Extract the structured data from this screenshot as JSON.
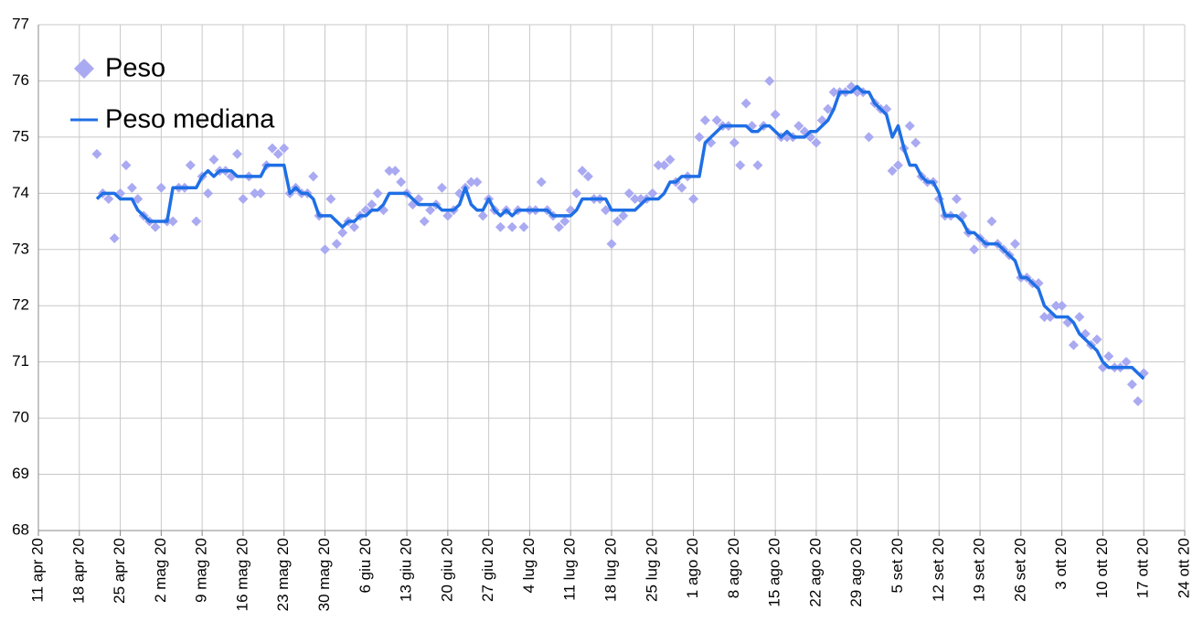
{
  "chart_data": {
    "type": "combo",
    "legend": "top-left",
    "grid": true,
    "x": [
      "2020-04-21",
      "2020-04-22",
      "2020-04-23",
      "2020-04-24",
      "2020-04-25",
      "2020-04-26",
      "2020-04-27",
      "2020-04-28",
      "2020-04-29",
      "2020-04-30",
      "2020-05-01",
      "2020-05-02",
      "2020-05-03",
      "2020-05-04",
      "2020-05-05",
      "2020-05-06",
      "2020-05-07",
      "2020-05-08",
      "2020-05-09",
      "2020-05-10",
      "2020-05-11",
      "2020-05-12",
      "2020-05-13",
      "2020-05-14",
      "2020-05-15",
      "2020-05-16",
      "2020-05-17",
      "2020-05-18",
      "2020-05-19",
      "2020-05-20",
      "2020-05-21",
      "2020-05-22",
      "2020-05-23",
      "2020-05-24",
      "2020-05-25",
      "2020-05-26",
      "2020-05-27",
      "2020-05-28",
      "2020-05-29",
      "2020-05-30",
      "2020-05-31",
      "2020-06-01",
      "2020-06-02",
      "2020-06-03",
      "2020-06-04",
      "2020-06-05",
      "2020-06-06",
      "2020-06-07",
      "2020-06-08",
      "2020-06-09",
      "2020-06-10",
      "2020-06-11",
      "2020-06-12",
      "2020-06-13",
      "2020-06-14",
      "2020-06-15",
      "2020-06-16",
      "2020-06-17",
      "2020-06-18",
      "2020-06-19",
      "2020-06-20",
      "2020-06-21",
      "2020-06-22",
      "2020-06-23",
      "2020-06-24",
      "2020-06-25",
      "2020-06-26",
      "2020-06-27",
      "2020-06-28",
      "2020-06-29",
      "2020-06-30",
      "2020-07-01",
      "2020-07-02",
      "2020-07-03",
      "2020-07-04",
      "2020-07-05",
      "2020-07-06",
      "2020-07-07",
      "2020-07-08",
      "2020-07-09",
      "2020-07-10",
      "2020-07-11",
      "2020-07-12",
      "2020-07-13",
      "2020-07-14",
      "2020-07-15",
      "2020-07-16",
      "2020-07-17",
      "2020-07-18",
      "2020-07-19",
      "2020-07-20",
      "2020-07-21",
      "2020-07-22",
      "2020-07-23",
      "2020-07-24",
      "2020-07-25",
      "2020-07-26",
      "2020-07-27",
      "2020-07-28",
      "2020-07-29",
      "2020-07-30",
      "2020-07-31",
      "2020-08-01",
      "2020-08-02",
      "2020-08-03",
      "2020-08-04",
      "2020-08-05",
      "2020-08-06",
      "2020-08-07",
      "2020-08-08",
      "2020-08-09",
      "2020-08-10",
      "2020-08-11",
      "2020-08-12",
      "2020-08-13",
      "2020-08-14",
      "2020-08-15",
      "2020-08-16",
      "2020-08-17",
      "2020-08-18",
      "2020-08-19",
      "2020-08-20",
      "2020-08-21",
      "2020-08-22",
      "2020-08-23",
      "2020-08-24",
      "2020-08-25",
      "2020-08-26",
      "2020-08-27",
      "2020-08-28",
      "2020-08-29",
      "2020-08-30",
      "2020-08-31",
      "2020-09-01",
      "2020-09-02",
      "2020-09-03",
      "2020-09-04",
      "2020-09-05",
      "2020-09-06",
      "2020-09-07",
      "2020-09-08",
      "2020-09-09",
      "2020-09-10",
      "2020-09-11",
      "2020-09-12",
      "2020-09-13",
      "2020-09-14",
      "2020-09-15",
      "2020-09-16",
      "2020-09-17",
      "2020-09-18",
      "2020-09-19",
      "2020-09-20",
      "2020-09-21",
      "2020-09-22",
      "2020-09-23",
      "2020-09-24",
      "2020-09-25",
      "2020-09-26",
      "2020-09-27",
      "2020-09-28",
      "2020-09-29",
      "2020-09-30",
      "2020-10-01",
      "2020-10-02",
      "2020-10-03",
      "2020-10-04",
      "2020-10-05",
      "2020-10-06",
      "2020-10-07",
      "2020-10-08",
      "2020-10-09",
      "2020-10-10",
      "2020-10-11",
      "2020-10-12",
      "2020-10-13",
      "2020-10-14",
      "2020-10-15",
      "2020-10-16",
      "2020-10-17"
    ],
    "series": [
      {
        "name": "Peso",
        "type": "scatter",
        "color": "#aaaaf2",
        "values": [
          74.7,
          74.0,
          73.9,
          73.2,
          74.0,
          74.5,
          74.1,
          73.9,
          73.6,
          73.5,
          73.4,
          74.1,
          73.5,
          73.5,
          74.1,
          74.1,
          74.5,
          73.5,
          74.3,
          74.0,
          74.6,
          74.4,
          74.4,
          74.3,
          74.7,
          73.9,
          74.3,
          74.0,
          74.0,
          74.5,
          74.8,
          74.7,
          74.8,
          74.0,
          74.1,
          74.0,
          74.0,
          74.3,
          73.6,
          73.0,
          73.9,
          73.1,
          73.3,
          73.5,
          73.4,
          73.6,
          73.7,
          73.8,
          74.0,
          73.7,
          74.4,
          74.4,
          74.2,
          74.0,
          73.8,
          73.9,
          73.5,
          73.7,
          73.8,
          74.1,
          73.6,
          73.7,
          74.0,
          74.1,
          74.2,
          74.2,
          73.6,
          73.9,
          73.7,
          73.4,
          73.7,
          73.4,
          73.7,
          73.4,
          73.7,
          73.7,
          74.2,
          73.7,
          73.6,
          73.4,
          73.5,
          73.7,
          74.0,
          74.4,
          74.3,
          73.9,
          73.9,
          73.7,
          73.1,
          73.5,
          73.6,
          74.0,
          73.9,
          73.9,
          73.9,
          74.0,
          74.5,
          74.5,
          74.6,
          74.2,
          74.1,
          74.3,
          73.9,
          75.0,
          75.3,
          74.9,
          75.3,
          75.2,
          75.2,
          74.9,
          74.5,
          75.6,
          75.2,
          74.5,
          75.2,
          76.0,
          75.4,
          75.0,
          75.0,
          75.0,
          75.2,
          75.1,
          75.0,
          74.9,
          75.3,
          75.5,
          75.8,
          75.8,
          75.8,
          75.9,
          75.8,
          75.8,
          75.0,
          75.6,
          75.5,
          75.5,
          74.4,
          74.5,
          74.8,
          75.2,
          74.9,
          74.3,
          74.2,
          74.2,
          73.9,
          73.6,
          73.6,
          73.9,
          73.6,
          73.3,
          73.0,
          73.2,
          73.1,
          73.5,
          73.1,
          73.0,
          72.9,
          73.1,
          72.5,
          72.5,
          72.4,
          72.4,
          71.8,
          71.8,
          72.0,
          72.0,
          71.7,
          71.3,
          71.8,
          71.5,
          71.3,
          71.4,
          70.9,
          71.1,
          70.9,
          70.9,
          71.0,
          70.6,
          70.3,
          70.8
        ]
      },
      {
        "name": "Peso mediana",
        "type": "line",
        "color": "#1f6fe5",
        "values": [
          73.9,
          74.0,
          74.0,
          74.0,
          73.9,
          73.9,
          73.9,
          73.7,
          73.6,
          73.5,
          73.5,
          73.5,
          73.5,
          74.1,
          74.1,
          74.1,
          74.1,
          74.1,
          74.3,
          74.4,
          74.3,
          74.4,
          74.4,
          74.4,
          74.3,
          74.3,
          74.3,
          74.3,
          74.3,
          74.5,
          74.5,
          74.5,
          74.5,
          74.0,
          74.1,
          74.0,
          74.0,
          73.9,
          73.6,
          73.6,
          73.6,
          73.5,
          73.4,
          73.5,
          73.5,
          73.6,
          73.6,
          73.7,
          73.7,
          73.8,
          74.0,
          74.0,
          74.0,
          74.0,
          73.9,
          73.8,
          73.8,
          73.8,
          73.8,
          73.7,
          73.7,
          73.7,
          73.8,
          74.1,
          73.8,
          73.7,
          73.7,
          73.9,
          73.7,
          73.6,
          73.7,
          73.6,
          73.7,
          73.7,
          73.7,
          73.7,
          73.7,
          73.7,
          73.6,
          73.6,
          73.6,
          73.6,
          73.7,
          73.9,
          73.9,
          73.9,
          73.9,
          73.9,
          73.7,
          73.7,
          73.7,
          73.7,
          73.7,
          73.8,
          73.9,
          73.9,
          73.9,
          74.0,
          74.2,
          74.2,
          74.3,
          74.3,
          74.3,
          74.3,
          74.9,
          75.0,
          75.1,
          75.2,
          75.2,
          75.2,
          75.2,
          75.2,
          75.1,
          75.1,
          75.2,
          75.2,
          75.1,
          75.0,
          75.1,
          75.0,
          75.0,
          75.0,
          75.1,
          75.1,
          75.2,
          75.3,
          75.5,
          75.8,
          75.8,
          75.8,
          75.9,
          75.8,
          75.8,
          75.6,
          75.5,
          75.4,
          75.0,
          75.2,
          74.8,
          74.5,
          74.5,
          74.3,
          74.2,
          74.2,
          74.0,
          73.6,
          73.6,
          73.6,
          73.5,
          73.3,
          73.3,
          73.2,
          73.1,
          73.1,
          73.1,
          73.0,
          72.9,
          72.8,
          72.5,
          72.5,
          72.4,
          72.3,
          72.0,
          71.9,
          71.8,
          71.8,
          71.8,
          71.7,
          71.5,
          71.4,
          71.3,
          71.2,
          71.0,
          70.9,
          70.9,
          70.9,
          70.9,
          70.9,
          70.8,
          70.7
        ]
      }
    ],
    "xlim": [
      "2020-04-11",
      "2020-10-24"
    ],
    "xticks": [
      {
        "value": "2020-04-11",
        "label": "11 apr 20"
      },
      {
        "value": "2020-04-18",
        "label": "18 apr 20"
      },
      {
        "value": "2020-04-25",
        "label": "25 apr 20"
      },
      {
        "value": "2020-05-02",
        "label": "2 mag 20"
      },
      {
        "value": "2020-05-09",
        "label": "9 mag 20"
      },
      {
        "value": "2020-05-16",
        "label": "16 mag 20"
      },
      {
        "value": "2020-05-23",
        "label": "23 mag 20"
      },
      {
        "value": "2020-05-30",
        "label": "30 mag 20"
      },
      {
        "value": "2020-06-06",
        "label": "6 giu 20"
      },
      {
        "value": "2020-06-13",
        "label": "13 giu 20"
      },
      {
        "value": "2020-06-20",
        "label": "20 giu 20"
      },
      {
        "value": "2020-06-27",
        "label": "27 giu 20"
      },
      {
        "value": "2020-07-04",
        "label": "4 lug 20"
      },
      {
        "value": "2020-07-11",
        "label": "11 lug 20"
      },
      {
        "value": "2020-07-18",
        "label": "18 lug 20"
      },
      {
        "value": "2020-07-25",
        "label": "25 lug 20"
      },
      {
        "value": "2020-08-01",
        "label": "1 ago 20"
      },
      {
        "value": "2020-08-08",
        "label": "8 ago 20"
      },
      {
        "value": "2020-08-15",
        "label": "15 ago 20"
      },
      {
        "value": "2020-08-22",
        "label": "22 ago 20"
      },
      {
        "value": "2020-08-29",
        "label": "29 ago 20"
      },
      {
        "value": "2020-09-05",
        "label": "5 set 20"
      },
      {
        "value": "2020-09-12",
        "label": "12 set 20"
      },
      {
        "value": "2020-09-19",
        "label": "19 set 20"
      },
      {
        "value": "2020-09-26",
        "label": "26 set 20"
      },
      {
        "value": "2020-10-03",
        "label": "3 ott 20"
      },
      {
        "value": "2020-10-10",
        "label": "10 ott 20"
      },
      {
        "value": "2020-10-17",
        "label": "17 ott 20"
      },
      {
        "value": "2020-10-24",
        "label": "24 ott 20"
      }
    ],
    "ylim": [
      68,
      77
    ],
    "yticks": [
      68,
      69,
      70,
      71,
      72,
      73,
      74,
      75,
      76,
      77
    ]
  }
}
